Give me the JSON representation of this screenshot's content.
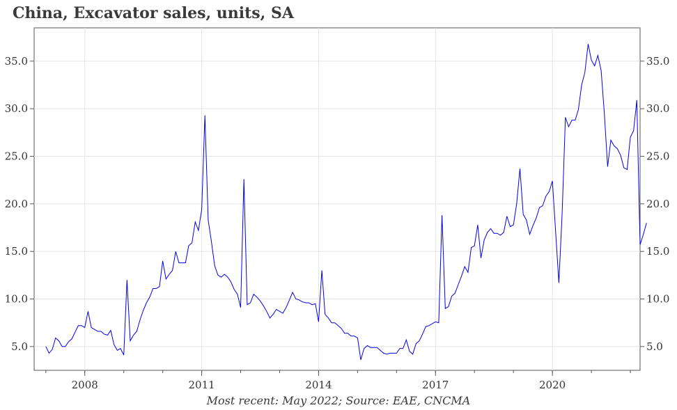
{
  "chart_data": {
    "type": "line",
    "title": "China, Excavator sales, units, SA",
    "source": "Most recent: May 2022; Source: EAE, CNCMA",
    "xlabel": "",
    "ylabel": "",
    "x_ticks": [
      {
        "value": 2008,
        "label": "2008"
      },
      {
        "value": 2011,
        "label": "2011"
      },
      {
        "value": 2014,
        "label": "2014"
      },
      {
        "value": 2017,
        "label": "2017"
      },
      {
        "value": 2020,
        "label": "2020"
      }
    ],
    "y_ticks": [
      {
        "value": 5,
        "label": "5.0"
      },
      {
        "value": 10,
        "label": "10.0"
      },
      {
        "value": 15,
        "label": "15.0"
      },
      {
        "value": 20,
        "label": "20.0"
      },
      {
        "value": 25,
        "label": "25.0"
      },
      {
        "value": 30,
        "label": "30.0"
      },
      {
        "value": 35,
        "label": "35.0"
      }
    ],
    "xlim": [
      2006.7,
      2022.25
    ],
    "ylim": [
      2.5,
      38.5
    ],
    "grid": true,
    "line_color": "#0000ee",
    "series": [
      {
        "start": "2007-01",
        "values": [
          5.0,
          4.3,
          4.7,
          5.9,
          5.6,
          5.0,
          5.0,
          5.5,
          5.8,
          6.5,
          7.2,
          7.2,
          7.0,
          8.7,
          7.0,
          6.8,
          6.6,
          6.6,
          6.3,
          6.2,
          6.7,
          5.2,
          4.6,
          4.8,
          4.1,
          12.0,
          5.6,
          6.2,
          6.6,
          7.8,
          8.8,
          9.6,
          10.2,
          11.1,
          11.1,
          11.3,
          14.0,
          12.1,
          12.6,
          13.0,
          15.0,
          13.8,
          13.8,
          13.8,
          15.6,
          15.9,
          18.1,
          17.2,
          19.4,
          29.3,
          18.3,
          16.0,
          13.5,
          12.5,
          12.3,
          12.6,
          12.3,
          11.8,
          11.0,
          10.5,
          9.1,
          22.6,
          9.4,
          9.6,
          10.5,
          10.2,
          9.8,
          9.3,
          8.7,
          8.0,
          8.4,
          8.9,
          8.7,
          8.5,
          9.1,
          9.9,
          10.7,
          10.0,
          9.9,
          9.7,
          9.6,
          9.6,
          9.4,
          9.5,
          7.6,
          13.0,
          8.4,
          8.0,
          7.5,
          7.5,
          7.2,
          6.9,
          6.4,
          6.4,
          6.1,
          6.1,
          5.9,
          3.6,
          4.8,
          5.1,
          4.9,
          4.9,
          4.9,
          4.6,
          4.3,
          4.2,
          4.3,
          4.3,
          4.3,
          4.8,
          4.8,
          5.7,
          4.5,
          4.2,
          5.3,
          5.6,
          6.3,
          7.1,
          7.2,
          7.4,
          7.6,
          7.5,
          18.8,
          9.0,
          9.2,
          10.3,
          10.6,
          11.5,
          12.4,
          13.4,
          12.8,
          15.4,
          15.6,
          17.8,
          14.3,
          16.2,
          17.0,
          17.4,
          16.9,
          16.9,
          16.7,
          17.0,
          18.7,
          17.6,
          17.8,
          20.0,
          23.7,
          18.9,
          18.3,
          16.8,
          17.7,
          18.5,
          19.6,
          19.8,
          20.8,
          21.3,
          22.4,
          17.0,
          11.7,
          19.0,
          29.1,
          28.1,
          28.8,
          28.8,
          29.9,
          32.5,
          33.8,
          36.8,
          35.1,
          34.5,
          35.6,
          34.0,
          29.5,
          23.9,
          26.7,
          26.1,
          25.8,
          25.1,
          23.8,
          23.6,
          27.0,
          27.7,
          30.9,
          15.7,
          16.8,
          18.0
        ]
      }
    ]
  }
}
